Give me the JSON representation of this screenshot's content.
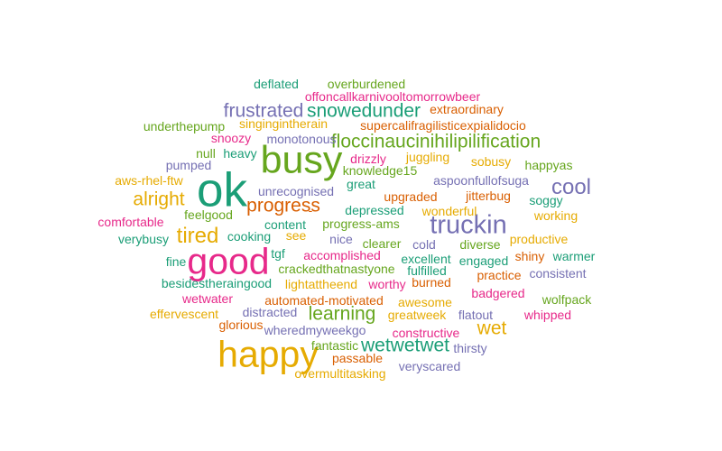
{
  "palette": {
    "teal": "#1b9e77",
    "orange": "#d95f02",
    "purple": "#7570b3",
    "pink": "#e7298a",
    "green": "#66a61e",
    "gold": "#e6ab02"
  },
  "words": [
    {
      "text": "ok",
      "weight": 10,
      "color": "teal"
    },
    {
      "text": "busy",
      "weight": 8,
      "color": "green"
    },
    {
      "text": "good",
      "weight": 7.5,
      "color": "pink"
    },
    {
      "text": "happy",
      "weight": 7.5,
      "color": "gold"
    },
    {
      "text": "truckin",
      "weight": 5,
      "color": "purple"
    },
    {
      "text": "cool",
      "weight": 4,
      "color": "purple"
    },
    {
      "text": "tired",
      "weight": 4,
      "color": "gold"
    },
    {
      "text": "frustrated",
      "weight": 3.5,
      "color": "purple"
    },
    {
      "text": "snowedunder",
      "weight": 3.5,
      "color": "teal"
    },
    {
      "text": "floccinaucinihilipilification",
      "weight": 3.5,
      "color": "green"
    },
    {
      "text": "alright",
      "weight": 3.5,
      "color": "gold"
    },
    {
      "text": "progress",
      "weight": 3.5,
      "color": "orange"
    },
    {
      "text": "learning",
      "weight": 3.5,
      "color": "green"
    },
    {
      "text": "wet",
      "weight": 3.5,
      "color": "gold"
    },
    {
      "text": "wetwetwet",
      "weight": 3.5,
      "color": "teal"
    },
    {
      "text": "deflated",
      "weight": 2,
      "color": "teal"
    },
    {
      "text": "overburdened",
      "weight": 2,
      "color": "green"
    },
    {
      "text": "offoncallkarnivooltomorrowbeer",
      "weight": 2,
      "color": "pink"
    },
    {
      "text": "extraordinary",
      "weight": 2,
      "color": "orange"
    },
    {
      "text": "underthepump",
      "weight": 2,
      "color": "green"
    },
    {
      "text": "singingintherain",
      "weight": 2,
      "color": "gold"
    },
    {
      "text": "supercalifragilisticexpialidocio",
      "weight": 2,
      "color": "orange"
    },
    {
      "text": "snoozy",
      "weight": 2,
      "color": "pink"
    },
    {
      "text": "monotonous",
      "weight": 2,
      "color": "purple"
    },
    {
      "text": "null",
      "weight": 2,
      "color": "green"
    },
    {
      "text": "heavy",
      "weight": 2,
      "color": "teal"
    },
    {
      "text": "drizzly",
      "weight": 2,
      "color": "pink"
    },
    {
      "text": "juggling",
      "weight": 2,
      "color": "gold"
    },
    {
      "text": "sobusy",
      "weight": 2,
      "color": "gold"
    },
    {
      "text": "pumped",
      "weight": 2,
      "color": "purple"
    },
    {
      "text": "knowledge15",
      "weight": 2,
      "color": "green"
    },
    {
      "text": "happyas",
      "weight": 2,
      "color": "green"
    },
    {
      "text": "aws-rhel-ftw",
      "weight": 2,
      "color": "gold"
    },
    {
      "text": "great",
      "weight": 2,
      "color": "teal"
    },
    {
      "text": "aspoonfullofsuga",
      "weight": 2,
      "color": "purple"
    },
    {
      "text": "unrecognised",
      "weight": 2,
      "color": "purple"
    },
    {
      "text": "upgraded",
      "weight": 2,
      "color": "orange"
    },
    {
      "text": "jitterbug",
      "weight": 2,
      "color": "orange"
    },
    {
      "text": "soggy",
      "weight": 2,
      "color": "teal"
    },
    {
      "text": "feelgood",
      "weight": 2,
      "color": "green"
    },
    {
      "text": "depressed",
      "weight": 2,
      "color": "teal"
    },
    {
      "text": "wonderful",
      "weight": 2,
      "color": "gold"
    },
    {
      "text": "working",
      "weight": 2,
      "color": "gold"
    },
    {
      "text": "comfortable",
      "weight": 2,
      "color": "pink"
    },
    {
      "text": "content",
      "weight": 2,
      "color": "teal"
    },
    {
      "text": "progress-ams",
      "weight": 2,
      "color": "green"
    },
    {
      "text": "-",
      "weight": 2,
      "color": "orange"
    },
    {
      "text": "verybusy",
      "weight": 2,
      "color": "teal"
    },
    {
      "text": "cooking",
      "weight": 2,
      "color": "teal"
    },
    {
      "text": "see",
      "weight": 2,
      "color": "gold"
    },
    {
      "text": "nice",
      "weight": 2,
      "color": "purple"
    },
    {
      "text": "clearer",
      "weight": 2,
      "color": "green"
    },
    {
      "text": "cold",
      "weight": 2,
      "color": "purple"
    },
    {
      "text": "diverse",
      "weight": 2,
      "color": "green"
    },
    {
      "text": "productive",
      "weight": 2,
      "color": "gold"
    },
    {
      "text": "tgf",
      "weight": 2,
      "color": "teal"
    },
    {
      "text": "accomplished",
      "weight": 2,
      "color": "pink"
    },
    {
      "text": "excellent",
      "weight": 2,
      "color": "teal"
    },
    {
      "text": "engaged",
      "weight": 2,
      "color": "teal"
    },
    {
      "text": "shiny",
      "weight": 2,
      "color": "orange"
    },
    {
      "text": "warmer",
      "weight": 2,
      "color": "teal"
    },
    {
      "text": "fine",
      "weight": 2,
      "color": "teal"
    },
    {
      "text": "crackedthatnastyone",
      "weight": 2,
      "color": "green"
    },
    {
      "text": "fulfilled",
      "weight": 2,
      "color": "teal"
    },
    {
      "text": "practice",
      "weight": 2,
      "color": "orange"
    },
    {
      "text": "consistent",
      "weight": 2,
      "color": "purple"
    },
    {
      "text": "besidestheraingood",
      "weight": 2,
      "color": "teal"
    },
    {
      "text": "lightattheend",
      "weight": 2,
      "color": "gold"
    },
    {
      "text": "worthy",
      "weight": 2,
      "color": "pink"
    },
    {
      "text": "burned",
      "weight": 2,
      "color": "orange"
    },
    {
      "text": "badgered",
      "weight": 2,
      "color": "pink"
    },
    {
      "text": "wetwater",
      "weight": 2,
      "color": "pink"
    },
    {
      "text": "automated-motivated",
      "weight": 2,
      "color": "orange"
    },
    {
      "text": "awesome",
      "weight": 2,
      "color": "gold"
    },
    {
      "text": "wolfpack",
      "weight": 2,
      "color": "green"
    },
    {
      "text": "effervescent",
      "weight": 2,
      "color": "gold"
    },
    {
      "text": "distracted",
      "weight": 2,
      "color": "purple"
    },
    {
      "text": "greatweek",
      "weight": 2,
      "color": "gold"
    },
    {
      "text": "flatout",
      "weight": 2,
      "color": "purple"
    },
    {
      "text": "whipped",
      "weight": 2,
      "color": "pink"
    },
    {
      "text": "glorious",
      "weight": 2,
      "color": "orange"
    },
    {
      "text": "wheredmyweekgo",
      "weight": 2,
      "color": "purple"
    },
    {
      "text": "constructive",
      "weight": 2,
      "color": "pink"
    },
    {
      "text": "fantastic",
      "weight": 2,
      "color": "green"
    },
    {
      "text": "thirsty",
      "weight": 2,
      "color": "purple"
    },
    {
      "text": "passable",
      "weight": 2,
      "color": "orange"
    },
    {
      "text": "veryscared",
      "weight": 2,
      "color": "purple"
    },
    {
      "text": "overmultitasking",
      "weight": 2,
      "color": "gold"
    }
  ]
}
